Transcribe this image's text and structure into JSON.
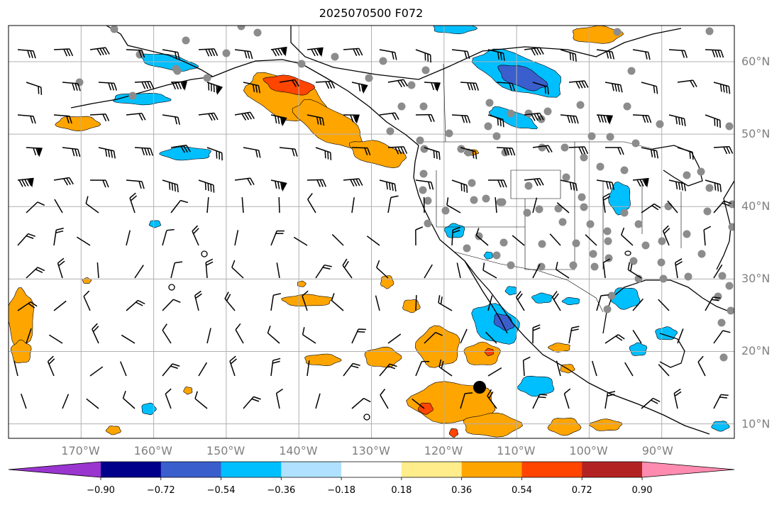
{
  "title": "2025070500 F072",
  "map": {
    "lon_range": [
      -180,
      -80
    ],
    "lat_range": [
      8,
      65
    ],
    "lat_labels": [
      "60°N",
      "50°N",
      "40°N",
      "30°N",
      "20°N",
      "10°N"
    ],
    "lon_labels": [
      "170°W",
      "160°W",
      "150°W",
      "140°W",
      "130°W",
      "120°W",
      "110°W",
      "100°W",
      "90°W"
    ]
  },
  "colorbar": {
    "levels": [
      -0.9,
      -0.72,
      -0.54,
      -0.36,
      -0.18,
      0.18,
      0.36,
      0.54,
      0.72,
      0.9
    ],
    "tick_labels": [
      "−0.90",
      "−0.72",
      "−0.54",
      "−0.36",
      "−0.18",
      "0.18",
      "0.36",
      "0.54",
      "0.72",
      "0.90"
    ],
    "colors": [
      "#9a35d0",
      "#00008b",
      "#3a5fcd",
      "#00bfff",
      "#b0e2ff",
      "#ffffff",
      "#ffec8b",
      "#ffa500",
      "#ff4500",
      "#b22222",
      "#ff8cb0"
    ]
  },
  "styles": {
    "grid_color": "#b0b0b0",
    "coast_color": "#000000",
    "station_color": "#8c8c8c",
    "marker_color": "#000000"
  }
}
